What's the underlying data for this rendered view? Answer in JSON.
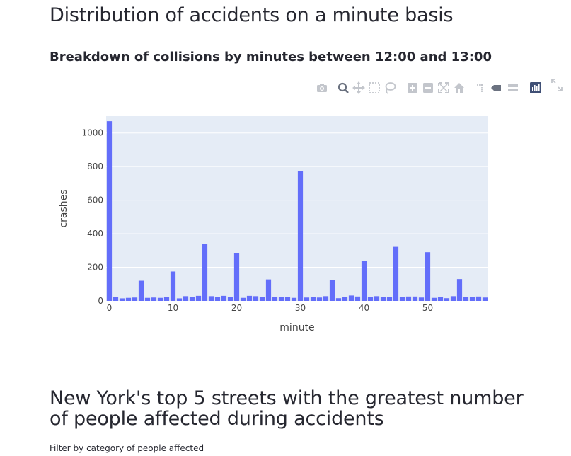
{
  "page": {
    "title": "Distribution of accidents on a minute basis",
    "subtitle": "Breakdown of collisions by minutes between 12:00 and 13:00",
    "section2_title": "New York's top 5 streets with the greatest number of people affected during accidents",
    "filter_label": "Filter by category of people affected"
  },
  "modebar": {
    "icons": [
      "camera-icon",
      "zoom-icon",
      "pan-icon",
      "box-select-icon",
      "lasso-select-icon",
      "zoom-in-icon",
      "zoom-out-icon",
      "autoscale-icon",
      "reset-axes-icon",
      "spike-lines-icon",
      "hover-closest-icon",
      "hover-compare-icon",
      "plotly-logo-icon"
    ],
    "colors": {
      "icon": "#c3c6cc",
      "logo": "#3f4f75"
    }
  },
  "chart_data": {
    "type": "bar",
    "xlabel": "minute",
    "ylabel": "crashes",
    "x": [
      0,
      1,
      2,
      3,
      4,
      5,
      6,
      7,
      8,
      9,
      10,
      11,
      12,
      13,
      14,
      15,
      16,
      17,
      18,
      19,
      20,
      21,
      22,
      23,
      24,
      25,
      26,
      27,
      28,
      29,
      30,
      31,
      32,
      33,
      34,
      35,
      36,
      37,
      38,
      39,
      40,
      41,
      42,
      43,
      44,
      45,
      46,
      47,
      48,
      49,
      50,
      51,
      52,
      53,
      54,
      55,
      56,
      57,
      58,
      59
    ],
    "values": [
      1070,
      22,
      15,
      18,
      20,
      120,
      18,
      20,
      18,
      22,
      175,
      15,
      28,
      25,
      30,
      338,
      28,
      22,
      30,
      22,
      283,
      18,
      30,
      28,
      24,
      128,
      24,
      22,
      22,
      18,
      775,
      20,
      24,
      20,
      28,
      125,
      16,
      22,
      32,
      26,
      240,
      24,
      28,
      22,
      24,
      322,
      24,
      26,
      26,
      20,
      290,
      18,
      24,
      16,
      28,
      130,
      24,
      24,
      26,
      20
    ],
    "ylim": [
      0,
      1100
    ],
    "xlim": [
      -0.5,
      59.5
    ],
    "yticks": [
      0,
      200,
      400,
      600,
      800,
      1000
    ],
    "xticks": [
      0,
      10,
      20,
      30,
      40,
      50
    ],
    "grid": true,
    "colors": {
      "bar": "#636efa",
      "plot_bg": "#e5ecf6",
      "grid": "#ffffff"
    }
  }
}
